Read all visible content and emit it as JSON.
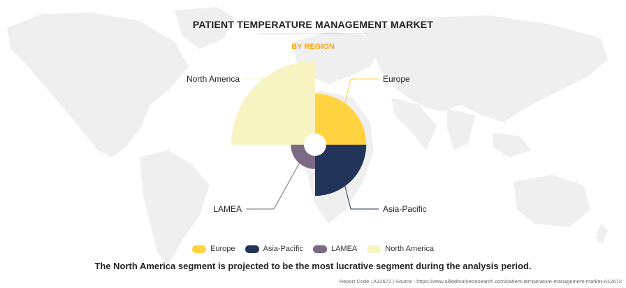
{
  "chart_data": {
    "type": "pie",
    "title": "PATIENT TEMPERATURE MANAGEMENT MARKET",
    "subtitle": "BY REGION",
    "categories": [
      "Europe",
      "Asia-Pacific",
      "LAMEA",
      "North America"
    ],
    "values": [
      0.61,
      0.61,
      0.29,
      1.0
    ],
    "colors": [
      "#ffd23f",
      "#22345a",
      "#7a6a86",
      "#f7f4c2"
    ],
    "legend_position": "bottom"
  },
  "legend": [
    {
      "label": "Europe",
      "color": "#ffd23f"
    },
    {
      "label": "Asia-Pacific",
      "color": "#22345a"
    },
    {
      "label": "LAMEA",
      "color": "#7a6a86"
    },
    {
      "label": "North America",
      "color": "#f7f4c2"
    }
  ],
  "footnote": "The North America segment is projected to be the most lucrative segment during the analysis period.",
  "source": "Report Code : A12672  |  Source : https://www.alliedmarketresearch.com/patient-temperature-management-market-A12672",
  "colors": {
    "map": "#efefef",
    "subtitle": "#f5a623",
    "leader": "#b0b0b0"
  }
}
